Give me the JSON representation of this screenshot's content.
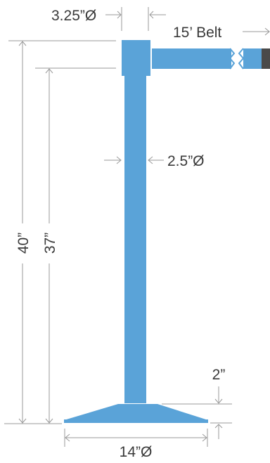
{
  "colors": {
    "post": "#5aa3d8",
    "belt_end": "#4a4a4a",
    "dimension_line": "#9a9a9a",
    "text": "#3a3a3a",
    "background": "#ffffff"
  },
  "labels": {
    "top_diameter": "3.25”Ø",
    "belt_length": "15’ Belt",
    "post_diameter": "2.5”Ø",
    "total_height": "40”",
    "post_height": "37”",
    "base_height": "2”",
    "base_diameter": "14”Ø"
  }
}
